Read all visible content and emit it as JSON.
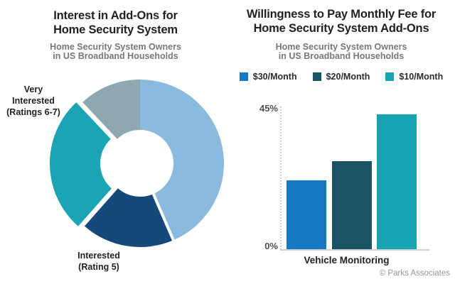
{
  "left_panel": {
    "title_lines": [
      "Interest in Add-Ons for",
      "Home Security System"
    ],
    "subtitle_lines": [
      "Home Security System Owners",
      "in US Broadband Households"
    ],
    "slice_labels": {
      "very_interested_lines": [
        "Very",
        "Interested",
        "(Ratings 6-7)"
      ],
      "interested_lines": [
        "Interested",
        "(Rating 5)"
      ]
    }
  },
  "right_panel": {
    "title_lines": [
      "Willingness to Pay Monthly Fee for",
      "Home Security System Add-Ons"
    ],
    "subtitle_lines": [
      "Home Security System Owners",
      "in US Broadband Households"
    ]
  },
  "footer": {
    "copyright": "© Parks Associates"
  },
  "colors": {
    "title_text": "#231f20",
    "subtitle_text": "#77787b",
    "axis_label_text": "#4d4e50",
    "axis_line": "#cfd1d2",
    "copyright_text": "#97999c"
  },
  "chart_data": [
    {
      "type": "pie",
      "donut": true,
      "title": "Interest in Add-Ons for Home Security System",
      "subtitle": "Home Security System Owners in US Broadband Households",
      "slices": [
        {
          "label": "",
          "value": 43.5,
          "color": "#8abadd",
          "exploded": false
        },
        {
          "label": "Interested (Rating 5)",
          "value": 18,
          "color": "#16497a",
          "exploded": false
        },
        {
          "label": "Very Interested (Ratings 6-7)",
          "value": 26.5,
          "color": "#1ba4b3",
          "exploded": true
        },
        {
          "label": "",
          "value": 12,
          "color": "#8da8b1",
          "exploded": false
        }
      ],
      "values_note": "percentages estimated from arc angles (no data labels shown)"
    },
    {
      "type": "bar",
      "title": "Willingness to Pay Monthly Fee for Home Security System Add-Ons",
      "subtitle": "Home Security System Owners in US Broadband Households",
      "categories": [
        "Vehicle Monitoring"
      ],
      "series": [
        {
          "name": "$30/Month",
          "values": [
            22
          ],
          "color": "#1579c1"
        },
        {
          "name": "$20/Month",
          "values": [
            28
          ],
          "color": "#1a5363"
        },
        {
          "name": "$10/Month",
          "values": [
            43
          ],
          "color": "#18a3b2"
        }
      ],
      "ylim": [
        0,
        45
      ],
      "yticks": [
        "45%",
        "0%"
      ],
      "legend_position": "top",
      "grid": false
    }
  ]
}
